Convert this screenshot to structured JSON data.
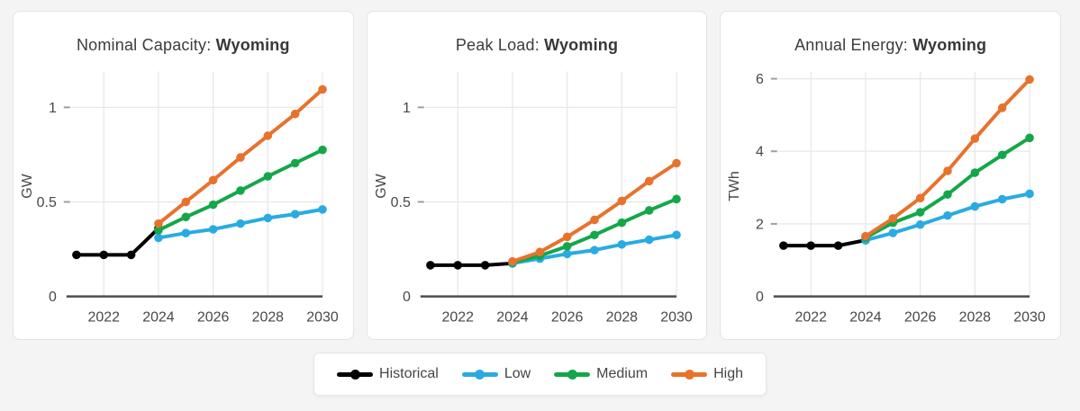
{
  "page_background": "#f4f4f5",
  "colors": {
    "historical": "#000000",
    "low": "#29abe2",
    "medium": "#13a74a",
    "high": "#e8722c",
    "axis_line": "#4d4d4d",
    "grid_line": "#e8e8ea",
    "tick_mark": "#9e9e9e",
    "axis_text": "#474747",
    "title_text": "#3c3c3c"
  },
  "chart_data": [
    {
      "type": "line",
      "title_prefix": "Nominal Capacity: ",
      "title_region": "Wyoming",
      "ylabel": "GW",
      "yticks": [
        0,
        0.5,
        1
      ],
      "ytick_labels": [
        "0",
        "0.5",
        "1"
      ],
      "ylim": [
        0,
        1.18
      ],
      "xticks": [
        2022,
        2024,
        2026,
        2028,
        2030
      ],
      "xtick_labels": [
        "2022",
        "2024",
        "2026",
        "2028",
        "2030"
      ],
      "xlim": [
        2020.7,
        2030.55
      ],
      "grid": true,
      "series": [
        {
          "name": "Historical",
          "color": "#000000",
          "x": [
            2021,
            2022,
            2023,
            2024
          ],
          "y": [
            0.22,
            0.22,
            0.22,
            0.36
          ]
        },
        {
          "name": "Low",
          "color": "#29abe2",
          "x": [
            2024,
            2025,
            2026,
            2027,
            2028,
            2029,
            2030
          ],
          "y": [
            0.31,
            0.335,
            0.355,
            0.385,
            0.415,
            0.435,
            0.46
          ]
        },
        {
          "name": "Medium",
          "color": "#13a74a",
          "x": [
            2024,
            2025,
            2026,
            2027,
            2028,
            2029,
            2030
          ],
          "y": [
            0.35,
            0.42,
            0.485,
            0.56,
            0.635,
            0.705,
            0.775
          ]
        },
        {
          "name": "High",
          "color": "#e8722c",
          "x": [
            2024,
            2025,
            2026,
            2027,
            2028,
            2029,
            2030
          ],
          "y": [
            0.385,
            0.5,
            0.615,
            0.735,
            0.85,
            0.965,
            1.095
          ]
        }
      ]
    },
    {
      "type": "line",
      "title_prefix": "Peak Load: ",
      "title_region": "Wyoming",
      "ylabel": "GW",
      "yticks": [
        0,
        0.5,
        1
      ],
      "ytick_labels": [
        "0",
        "0.5",
        "1"
      ],
      "ylim": [
        0,
        1.18
      ],
      "xticks": [
        2022,
        2024,
        2026,
        2028,
        2030
      ],
      "xtick_labels": [
        "2022",
        "2024",
        "2026",
        "2028",
        "2030"
      ],
      "xlim": [
        2020.7,
        2030.55
      ],
      "grid": true,
      "series": [
        {
          "name": "Historical",
          "color": "#000000",
          "x": [
            2021,
            2022,
            2023,
            2024
          ],
          "y": [
            0.165,
            0.165,
            0.165,
            0.175
          ]
        },
        {
          "name": "Low",
          "color": "#29abe2",
          "x": [
            2024,
            2025,
            2026,
            2027,
            2028,
            2029,
            2030
          ],
          "y": [
            0.175,
            0.2,
            0.225,
            0.245,
            0.275,
            0.3,
            0.325
          ]
        },
        {
          "name": "Medium",
          "color": "#13a74a",
          "x": [
            2024,
            2025,
            2026,
            2027,
            2028,
            2029,
            2030
          ],
          "y": [
            0.18,
            0.215,
            0.265,
            0.325,
            0.39,
            0.455,
            0.515
          ]
        },
        {
          "name": "High",
          "color": "#e8722c",
          "x": [
            2024,
            2025,
            2026,
            2027,
            2028,
            2029,
            2030
          ],
          "y": [
            0.185,
            0.235,
            0.315,
            0.405,
            0.505,
            0.61,
            0.705
          ]
        }
      ]
    },
    {
      "type": "line",
      "title_prefix": "Annual Energy: ",
      "title_region": "Wyoming",
      "ylabel": "TWh",
      "yticks": [
        0,
        2,
        4,
        6
      ],
      "ytick_labels": [
        "0",
        "2",
        "4",
        "6"
      ],
      "ylim": [
        0,
        6.15
      ],
      "xticks": [
        2022,
        2024,
        2026,
        2028,
        2030
      ],
      "xtick_labels": [
        "2022",
        "2024",
        "2026",
        "2028",
        "2030"
      ],
      "xlim": [
        2020.7,
        2030.55
      ],
      "grid": true,
      "series": [
        {
          "name": "Historical",
          "color": "#000000",
          "x": [
            2021,
            2022,
            2023,
            2024
          ],
          "y": [
            1.4,
            1.4,
            1.4,
            1.55
          ]
        },
        {
          "name": "Low",
          "color": "#29abe2",
          "x": [
            2024,
            2025,
            2026,
            2027,
            2028,
            2029,
            2030
          ],
          "y": [
            1.55,
            1.75,
            1.98,
            2.23,
            2.48,
            2.68,
            2.83
          ]
        },
        {
          "name": "Medium",
          "color": "#13a74a",
          "x": [
            2024,
            2025,
            2026,
            2027,
            2028,
            2029,
            2030
          ],
          "y": [
            1.62,
            2.03,
            2.32,
            2.81,
            3.41,
            3.9,
            4.37
          ]
        },
        {
          "name": "High",
          "color": "#e8722c",
          "x": [
            2024,
            2025,
            2026,
            2027,
            2028,
            2029,
            2030
          ],
          "y": [
            1.66,
            2.15,
            2.71,
            3.46,
            4.35,
            5.2,
            5.98
          ]
        }
      ]
    }
  ],
  "legend": {
    "items": [
      {
        "label": "Historical",
        "color": "#000000"
      },
      {
        "label": "Low",
        "color": "#29abe2"
      },
      {
        "label": "Medium",
        "color": "#13a74a"
      },
      {
        "label": "High",
        "color": "#e8722c"
      }
    ]
  }
}
